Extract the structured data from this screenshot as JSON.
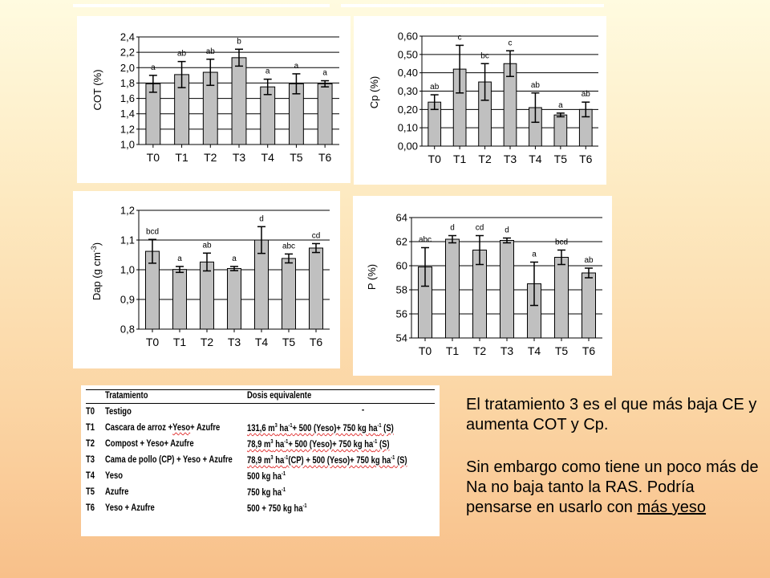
{
  "chart_data": [
    {
      "id": "cot",
      "type": "bar",
      "categories": [
        "T0",
        "T1",
        "T2",
        "T3",
        "T4",
        "T5",
        "T6"
      ],
      "values": [
        1.79,
        1.91,
        1.94,
        2.13,
        1.75,
        1.79,
        1.79
      ],
      "errors": [
        0.11,
        0.17,
        0.17,
        0.11,
        0.1,
        0.13,
        0.04
      ],
      "letters": [
        "a",
        "ab",
        "ab",
        "b",
        "a",
        "a",
        "a"
      ],
      "ylabel": "COT (%)",
      "ylim": [
        1.0,
        2.4
      ],
      "yticks": [
        "1,0",
        "1,2",
        "1,4",
        "1,6",
        "1,8",
        "2,0",
        "2,2",
        "2,4"
      ],
      "grid": true
    },
    {
      "id": "cp",
      "type": "bar",
      "categories": [
        "T0",
        "T1",
        "T2",
        "T3",
        "T4",
        "T5",
        "T6"
      ],
      "values": [
        0.24,
        0.42,
        0.35,
        0.45,
        0.21,
        0.17,
        0.2
      ],
      "errors": [
        0.04,
        0.13,
        0.1,
        0.07,
        0.08,
        0.01,
        0.04
      ],
      "letters": [
        "ab",
        "c",
        "bc",
        "c",
        "ab",
        "a",
        "ab"
      ],
      "ylabel": "Cp (%)",
      "ylim": [
        0,
        0.6
      ],
      "yticks": [
        "0,00",
        "0,10",
        "0,20",
        "0,30",
        "0,40",
        "0,50",
        "0,60"
      ],
      "grid": true
    },
    {
      "id": "dap",
      "type": "bar",
      "categories": [
        "T0",
        "T1",
        "T2",
        "T3",
        "T4",
        "T5",
        "T6"
      ],
      "values": [
        1.062,
        1.001,
        1.026,
        1.004,
        1.1,
        1.038,
        1.073
      ],
      "errors": [
        0.04,
        0.01,
        0.03,
        0.007,
        0.045,
        0.015,
        0.015
      ],
      "letters": [
        "bcd",
        "a",
        "ab",
        "a",
        "d",
        "abc",
        "cd"
      ],
      "ylabel": "Dap (g cm-3)",
      "ylim": [
        0.8,
        1.2
      ],
      "yticks": [
        "0,8",
        "0,9",
        "1,0",
        "1,1",
        "1,2"
      ],
      "grid": true
    },
    {
      "id": "p",
      "type": "bar",
      "categories": [
        "T0",
        "T1",
        "T2",
        "T3",
        "T4",
        "T5",
        "T6"
      ],
      "values": [
        59.9,
        62.2,
        61.3,
        62.1,
        58.5,
        60.7,
        59.4
      ],
      "errors": [
        1.6,
        0.3,
        1.2,
        0.2,
        1.8,
        0.6,
        0.4
      ],
      "letters": [
        "abc",
        "d",
        "cd",
        "d",
        "a",
        "bcd",
        "ab"
      ],
      "ylabel": "P (%)",
      "ylim": [
        54,
        64
      ],
      "yticks": [
        "54",
        "56",
        "58",
        "60",
        "62",
        "64"
      ],
      "grid": true
    }
  ],
  "table": {
    "headers": {
      "treatment": "Tratamiento",
      "dose": "Dosis equivalente"
    },
    "rows": [
      {
        "code": "T0",
        "treatment": "Testigo",
        "dose": "-"
      },
      {
        "code": "T1",
        "treatment": "Cascara de arroz +Yeso+ Azufre",
        "dose": "131,6 m3 ha-1+ 500 (Yeso)+ 750 kg ha-1 (S)"
      },
      {
        "code": "T2",
        "treatment": "Compost + Yeso+ Azufre",
        "dose": "78,9 m3 ha-1+ 500 (Yeso)+ 750 kg ha-1 (S)"
      },
      {
        "code": "T3",
        "treatment": "Cama de pollo (CP) + Yeso + Azufre",
        "dose": "78,9 m3 ha-1(CP) + 500 (Yeso)+ 750 kg ha-1 (S)"
      },
      {
        "code": "T4",
        "treatment": "Yeso",
        "dose": "500 kg ha-1"
      },
      {
        "code": "T5",
        "treatment": "Azufre",
        "dose": "750 kg ha-1"
      },
      {
        "code": "T6",
        "treatment": "Yeso + Azufre",
        "dose": "500 + 750 kg ha-1"
      }
    ]
  },
  "note": {
    "p1": "El tratamiento 3 es el que más baja CE y aumenta COT y Cp.",
    "p2_main": "Sin embargo como tiene un poco más de Na no baja tanto la RAS. Podría pensarse en usarlo con ",
    "p2_underlined": "más yeso"
  },
  "colors": {
    "bar": "#c0c0c0",
    "bar_stroke": "#000000",
    "grid": "#000000",
    "background_top": "#fffbe0",
    "background_bottom": "#f8c08a"
  }
}
